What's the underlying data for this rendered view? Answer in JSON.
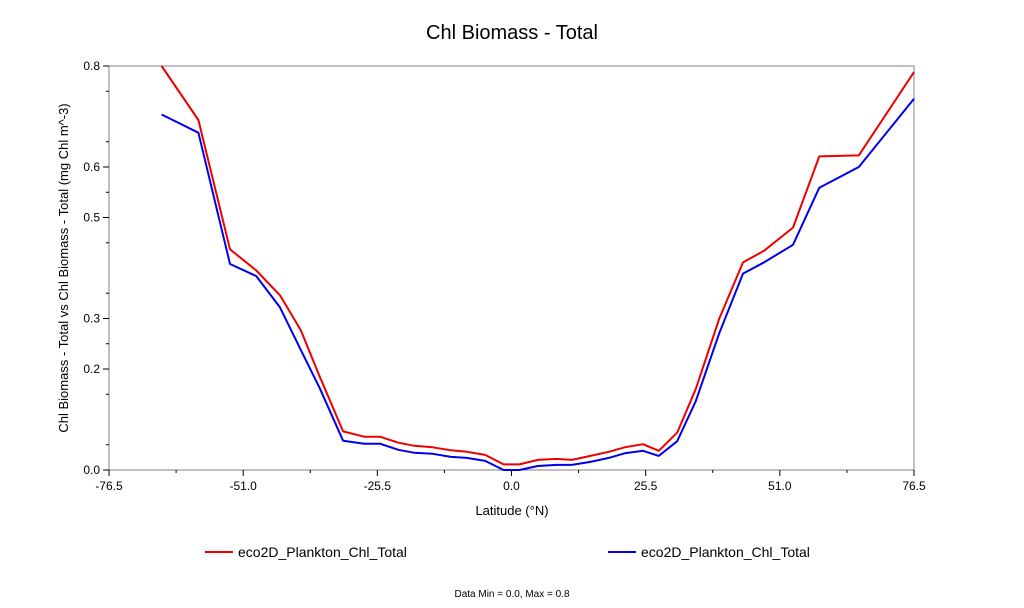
{
  "chart_data": {
    "type": "line",
    "title": "Chl Biomass - Total",
    "xlabel": "Latitude (°N)",
    "ylabel": "Chl Biomass - Total vs Chl Biomass - Total (mg Chl m^-3)",
    "xlim": [
      -76.5,
      76.5
    ],
    "ylim": [
      0.0,
      0.8
    ],
    "x_ticks": [
      -76.5,
      -51.0,
      -25.5,
      0.0,
      25.5,
      51.0,
      76.5
    ],
    "x_tick_labels": [
      "-76.5",
      "-51.0",
      "-25.5",
      "0.0",
      "25.5",
      "51.0",
      "76.5"
    ],
    "y_ticks": [
      0.0,
      0.2,
      0.3,
      0.5,
      0.6,
      0.8
    ],
    "y_tick_labels": [
      "0.0",
      "0.2",
      "0.3",
      "0.5",
      "0.6",
      "0.8"
    ],
    "grid": false,
    "legend_position": "bottom",
    "series": [
      {
        "name": "eco2D_Plankton_Chl_Total",
        "color": "#ee0000",
        "x": [
          -66.5,
          -59.5,
          -53.5,
          -48.5,
          -44.0,
          -40.0,
          -36.5,
          -32.0,
          -28.0,
          -25.0,
          -21.5,
          -18.5,
          -15.0,
          -11.5,
          -8.5,
          -5.0,
          -1.5,
          1.5,
          5.0,
          8.5,
          11.5,
          15.0,
          18.5,
          21.5,
          25.0,
          28.0,
          31.5,
          35.0,
          39.5,
          44.0,
          48.0,
          53.5,
          58.5,
          66.0,
          76.5
        ],
        "y": [
          0.8,
          0.693,
          0.437,
          0.395,
          0.346,
          0.276,
          0.186,
          0.0765,
          0.066,
          0.066,
          0.054,
          0.048,
          0.045,
          0.039,
          0.036,
          0.03,
          0.011,
          0.011,
          0.02,
          0.022,
          0.02,
          0.028,
          0.036,
          0.045,
          0.051,
          0.038,
          0.074,
          0.16,
          0.3,
          0.411,
          0.434,
          0.48,
          0.621,
          0.623,
          0.788
        ]
      },
      {
        "name": "eco2D_Plankton_Chl_Total",
        "color": "#0000ee",
        "x": [
          -66.5,
          -59.5,
          -53.5,
          -48.5,
          -44.0,
          -40.0,
          -36.5,
          -32.0,
          -28.0,
          -25.0,
          -21.5,
          -18.5,
          -15.0,
          -11.5,
          -8.5,
          -5.0,
          -1.5,
          1.5,
          5.0,
          8.5,
          11.5,
          15.0,
          18.5,
          21.5,
          25.0,
          28.0,
          31.5,
          35.0,
          39.5,
          44.0,
          48.0,
          53.5,
          58.5,
          66.0,
          76.5
        ],
        "y": [
          0.704,
          0.668,
          0.408,
          0.384,
          0.322,
          0.237,
          0.163,
          0.058,
          0.052,
          0.052,
          0.04,
          0.034,
          0.032,
          0.026,
          0.024,
          0.018,
          0.0,
          0.0,
          0.008,
          0.01,
          0.01,
          0.016,
          0.024,
          0.033,
          0.038,
          0.028,
          0.057,
          0.136,
          0.271,
          0.389,
          0.411,
          0.446,
          0.559,
          0.6,
          0.735
        ]
      }
    ]
  },
  "footer": "Data Min = 0.0, Max = 0.8"
}
